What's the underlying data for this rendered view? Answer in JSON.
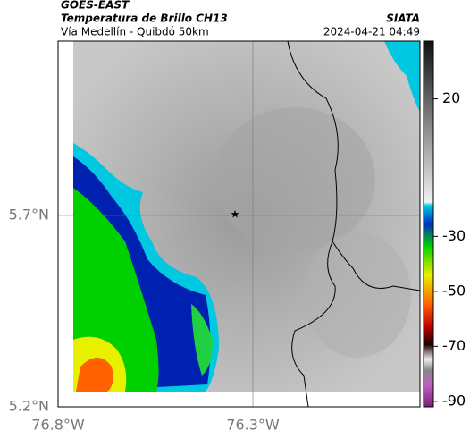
{
  "header": {
    "title": "GOES-EAST",
    "subtitle": "Temperatura de Brillo CH13",
    "location": "Vía Medellín - Quibdó 50km",
    "source": "SIATA",
    "datetime": "2024-04-21 04:49"
  },
  "map": {
    "lat_labels": [
      "5.7°N",
      "5.2°N"
    ],
    "lon_labels": [
      "76.8°W",
      "76.3°W"
    ]
  },
  "colorbar": {
    "range": [
      -92,
      41
    ],
    "ticks": [
      20,
      -30,
      -50,
      -70,
      -90
    ]
  }
}
